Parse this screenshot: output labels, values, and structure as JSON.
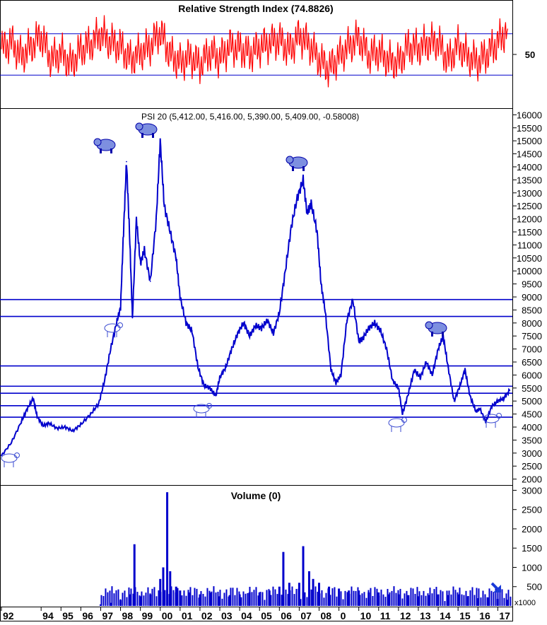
{
  "colors": {
    "rsi_line": "#ff0000",
    "price_line": "#0000cc",
    "volume_bars": "#0000cc",
    "frame": "#000000",
    "background": "#ffffff"
  },
  "icons": [
    "bear-icon",
    "bull-icon",
    "arrow-down-right-icon"
  ],
  "chart_data": [
    {
      "type": "line",
      "title": "Relative Strength Index (74.8826)",
      "y_ticks": [
        "50"
      ],
      "ylim": [
        0,
        100
      ],
      "reference_lines": [
        70,
        30
      ],
      "series": [
        {
          "x": [
            1992.0,
            1992.5,
            1993.0,
            1993.5,
            1994.0,
            1994.5,
            1995.0,
            1995.5,
            1996.0,
            1996.5,
            1997.0,
            1997.5,
            1998.0,
            1998.5,
            1999.0,
            1999.5,
            2000.0,
            2000.5,
            2001.0,
            2001.5,
            2002.0,
            2002.5,
            2003.0,
            2003.5,
            2004.0,
            2004.5,
            2005.0,
            2005.5,
            2006.0,
            2006.5,
            2007.0,
            2007.5,
            2008.0,
            2008.5,
            2009.0,
            2009.5,
            2010.0,
            2010.5,
            2011.0,
            2011.5,
            2012.0,
            2012.5,
            2013.0,
            2013.5,
            2014.0,
            2014.5,
            2015.0,
            2015.5,
            2016.0,
            2016.5,
            2017.0,
            2017.5
          ],
          "values": [
            55,
            62,
            48,
            58,
            68,
            45,
            52,
            40,
            55,
            60,
            70,
            62,
            58,
            45,
            52,
            58,
            72,
            50,
            42,
            48,
            40,
            52,
            46,
            58,
            56,
            50,
            57,
            61,
            64,
            54,
            68,
            60,
            45,
            36,
            48,
            58,
            66,
            49,
            53,
            44,
            42,
            58,
            56,
            61,
            62,
            44,
            59,
            48,
            43,
            51,
            62,
            75
          ]
        }
      ]
    },
    {
      "type": "line",
      "title": "PSI 20 (5,412.00, 5,416.00, 5,390.00, 5,409.00, -0.58008)",
      "x_tick_labels": [
        "92",
        "94",
        "95",
        "96",
        "97",
        "98",
        "99",
        "00",
        "01",
        "02",
        "03",
        "04",
        "05",
        "06",
        "07",
        "08",
        "0",
        "10",
        "11",
        "12",
        "13",
        "14",
        "15",
        "16",
        "17"
      ],
      "x_tick_positions": [
        1992,
        1994,
        1995,
        1996,
        1997,
        1998,
        1999,
        2000,
        2001,
        2002,
        2003,
        2004,
        2005,
        2006,
        2007,
        2008,
        2009,
        2010,
        2011,
        2012,
        2013,
        2014,
        2015,
        2016,
        2017
      ],
      "y_ticks": [
        2000,
        2500,
        3000,
        3500,
        4000,
        4500,
        5000,
        5500,
        6000,
        6500,
        7000,
        7500,
        8000,
        8500,
        9000,
        9500,
        10000,
        10500,
        11000,
        11500,
        12000,
        12500,
        13000,
        13500,
        14000,
        14500,
        15000,
        15500,
        16000
      ],
      "ylim": [
        1800,
        16200
      ],
      "xlim": [
        1992.0,
        2017.7
      ],
      "horizontal_lines": [
        8900,
        8250,
        6350,
        5570,
        5300,
        4820,
        4380
      ],
      "series": [
        {
          "x": [
            1992.0,
            1992.5,
            1993.0,
            1993.3,
            1993.6,
            1993.8,
            1994.1,
            1994.4,
            1994.8,
            1995.2,
            1995.6,
            1996.0,
            1996.5,
            1996.9,
            1997.2,
            1997.5,
            1997.8,
            1998.0,
            1998.15,
            1998.3,
            1998.45,
            1998.6,
            1998.8,
            1999.0,
            1999.2,
            1999.5,
            1999.8,
            2000.0,
            2000.2,
            2000.5,
            2000.8,
            2001.0,
            2001.3,
            2001.6,
            2001.9,
            2002.2,
            2002.5,
            2002.8,
            2003.0,
            2003.3,
            2003.6,
            2003.9,
            2004.2,
            2004.5,
            2004.8,
            2005.1,
            2005.4,
            2005.7,
            2006.0,
            2006.3,
            2006.6,
            2006.9,
            2007.2,
            2007.4,
            2007.6,
            2007.9,
            2008.1,
            2008.3,
            2008.6,
            2008.85,
            2009.1,
            2009.4,
            2009.7,
            2010.0,
            2010.2,
            2010.5,
            2010.8,
            2011.1,
            2011.4,
            2011.7,
            2012.0,
            2012.2,
            2012.5,
            2012.8,
            2013.1,
            2013.4,
            2013.7,
            2014.0,
            2014.25,
            2014.5,
            2014.8,
            2015.1,
            2015.35,
            2015.6,
            2015.9,
            2016.1,
            2016.4,
            2016.7,
            2017.0,
            2017.3,
            2017.6
          ],
          "values": [
            2900,
            3400,
            4200,
            4700,
            5100,
            4400,
            4050,
            4150,
            3950,
            4000,
            3850,
            4100,
            4500,
            4900,
            5800,
            7000,
            8000,
            8600,
            11500,
            14200,
            11500,
            8200,
            12000,
            10300,
            10800,
            9600,
            12000,
            15000,
            12500,
            11500,
            10500,
            9000,
            8000,
            7700,
            6300,
            5600,
            5500,
            5200,
            5900,
            6300,
            7000,
            7600,
            8000,
            7500,
            7900,
            7800,
            8100,
            7600,
            8400,
            10000,
            11700,
            12800,
            13500,
            12200,
            12600,
            11500,
            9500,
            8500,
            6200,
            5700,
            6000,
            8100,
            8900,
            7300,
            7400,
            7800,
            8000,
            7700,
            7000,
            5800,
            5500,
            4500,
            5300,
            6200,
            5900,
            6500,
            6000,
            7000,
            7500,
            6300,
            5000,
            5600,
            6200,
            5200,
            4600,
            4700,
            4200,
            4800,
            5000,
            5100,
            5409
          ]
        }
      ]
    },
    {
      "type": "bar",
      "title": "Volume (0)",
      "y_ticks": [
        500,
        1000,
        1500,
        2000,
        2500,
        3000
      ],
      "ylim": [
        0,
        3100
      ],
      "scale_note": "x1000",
      "x": [
        1992.0,
        1993.0,
        1994.0,
        1995.0,
        1996.0,
        1997.0,
        1997.5,
        1998.0,
        1998.5,
        1998.7,
        1999.0,
        1999.5,
        2000.0,
        2000.15,
        2000.35,
        2000.5,
        2000.8,
        2001.0,
        2001.5,
        2002.0,
        2002.5,
        2003.0,
        2003.5,
        2004.0,
        2004.5,
        2005.0,
        2005.5,
        2006.0,
        2006.2,
        2006.5,
        2007.0,
        2007.2,
        2007.5,
        2007.7,
        2008.0,
        2008.5,
        2009.0,
        2009.5,
        2010.0,
        2010.5,
        2011.0,
        2011.5,
        2012.0,
        2012.5,
        2013.0,
        2013.5,
        2014.0,
        2014.5,
        2015.0,
        2015.5,
        2016.0,
        2016.5,
        2017.0,
        2017.5
      ],
      "values": [
        0,
        0,
        0,
        0,
        0,
        40,
        80,
        150,
        300,
        1600,
        250,
        300,
        700,
        1000,
        2950,
        900,
        500,
        400,
        350,
        300,
        350,
        250,
        280,
        300,
        350,
        350,
        400,
        500,
        1400,
        600,
        600,
        1550,
        900,
        700,
        600,
        500,
        450,
        400,
        400,
        350,
        350,
        300,
        300,
        280,
        250,
        280,
        300,
        280,
        300,
        250,
        200,
        220,
        180,
        160
      ]
    }
  ]
}
